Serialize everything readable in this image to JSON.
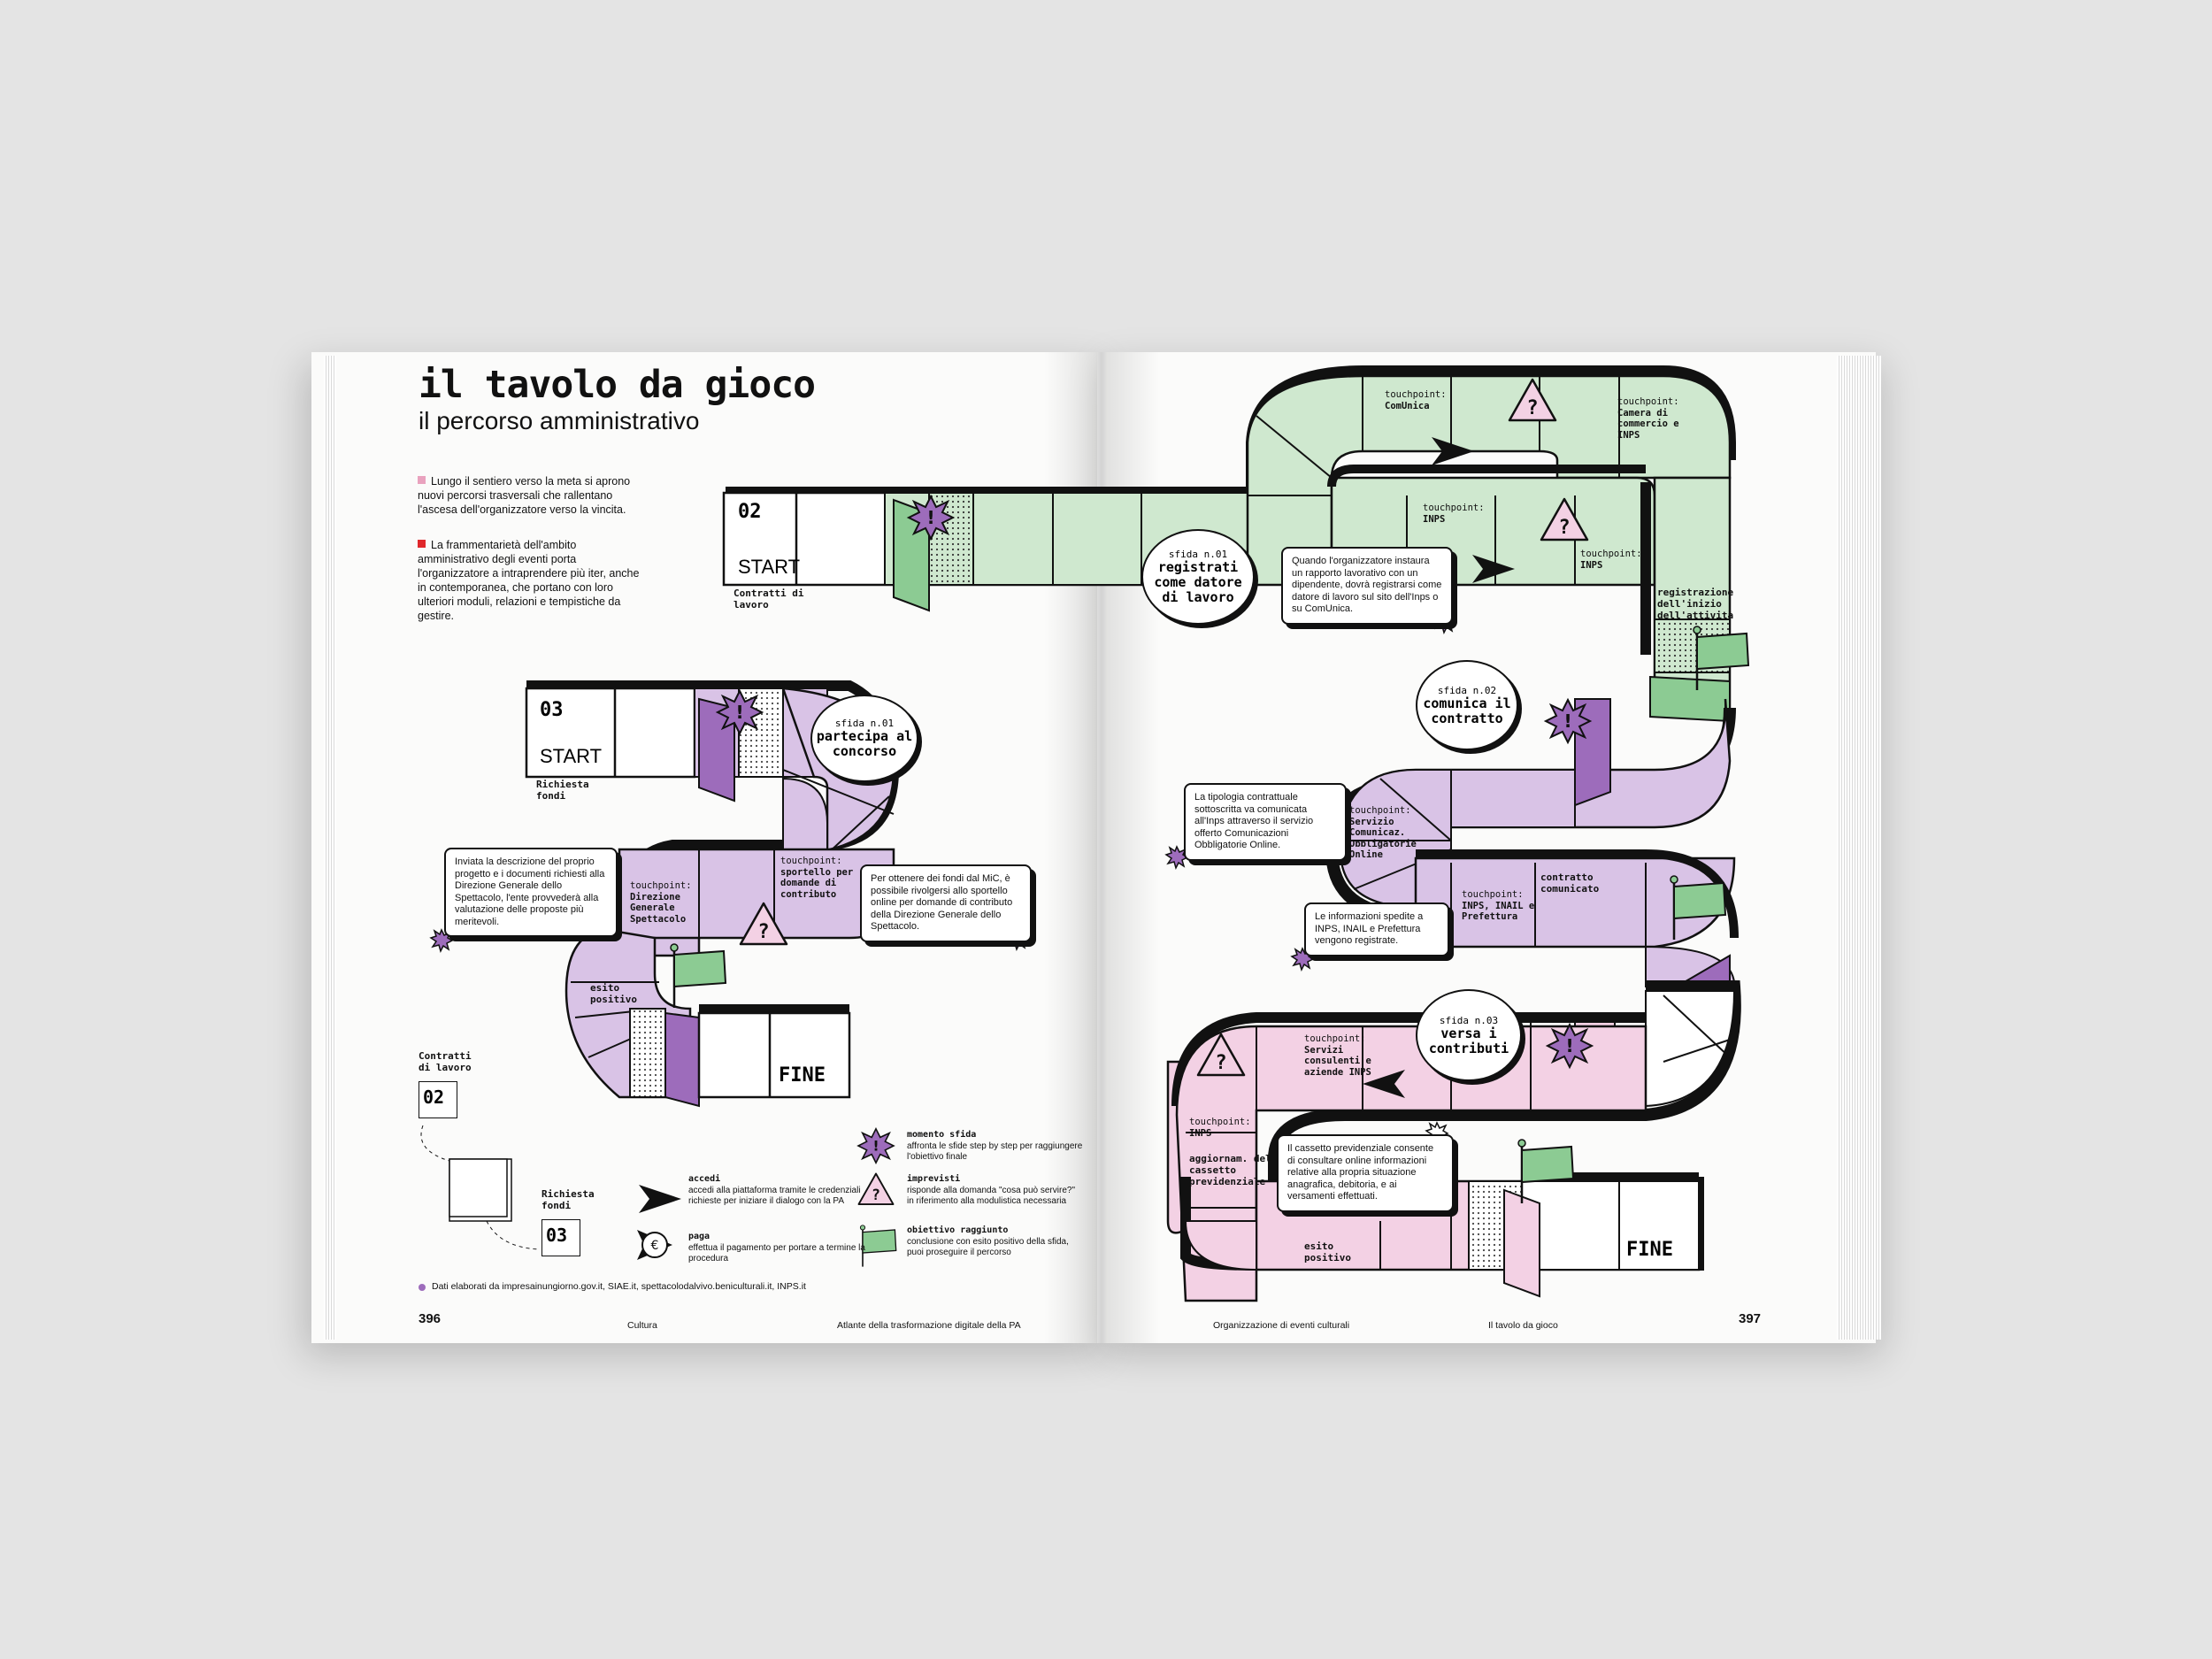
{
  "title": "il tavolo da gioco",
  "subtitle": "il percorso amministrativo",
  "intro": [
    {
      "text": "Lungo il sentiero verso la meta si aprono nuovi percorsi trasversali che rallentano l'ascesa dell'organizzatore verso la vincita.",
      "color": "#e9a2be"
    },
    {
      "text": "La frammentarietà dell'ambito amministrativo degli eventi porta l'organizzatore a intraprendere più iter, anche in contemporanea, che portano con loro ulteriori moduli, relazioni e tempistiche da gestire.",
      "color": "#e0272b"
    }
  ],
  "colors": {
    "green": "#cfe8cf",
    "green_dark": "#8ccb93",
    "purple": "#d9c3e6",
    "purple_dark": "#9d6cbb",
    "pink": "#f3d1e4",
    "pink_dark": "#e9a9ce",
    "ink": "#111111"
  },
  "path02": {
    "number": "02",
    "start": "START",
    "label": "Contratti di lavoro",
    "challenge": {
      "k": "sfida n.01",
      "v": "registrati come datore di lavoro"
    },
    "bubble": "Quando l'organizzatore instaura un rapporto lavorativo con un dipendente, dovrà registrarsi come datore di lavoro sul sito dell'Inps o su ComUnica.",
    "tp1": {
      "k": "touchpoint:",
      "v": "ComUnica"
    },
    "tp2": {
      "k": "touchpoint:",
      "v": "Camera di commercio e INPS"
    },
    "tp3": {
      "k": "touchpoint:",
      "v": "INPS"
    },
    "tp4": {
      "k": "touchpoint:",
      "v": "INPS"
    },
    "step": "registrazione dell'inizio dell'attività"
  },
  "path02b": {
    "challenge": {
      "k": "sfida n.02",
      "v": "comunica il contratto"
    },
    "bubble1": "La tipologia contrattuale sottoscritta va comunicata all'Inps attraverso il servizio offerto Comunicazioni Obbligatorie Online.",
    "tp1": {
      "k": "touchpoint:",
      "v": "Servizio Comunicaz. Obbligatorie Online"
    },
    "tp2": {
      "k": "touchpoint:",
      "v": "INPS, INAIL e Prefettura"
    },
    "step": "contratto comunicato",
    "bubble2": "Le informazioni spedite a INPS, INAIL e Prefettura vengono registrate."
  },
  "path02c": {
    "challenge": {
      "k": "sfida n.03",
      "v": "versa i contributi"
    },
    "tp1": {
      "k": "touchpoint:",
      "v": "Servizi consulenti e aziende INPS"
    },
    "tp2": {
      "k": "touchpoint:",
      "v": "INPS"
    },
    "step1": "aggiornam. del cassetto previdenziale",
    "bubble": "Il cassetto previdenziale consente di consultare online informazioni relative alla propria situazione anagrafica, debitoria, e ai versamenti effettuati.",
    "step2": "esito positivo",
    "end": "FINE"
  },
  "path03": {
    "number": "03",
    "start": "START",
    "label": "Richiesta fondi",
    "challenge": {
      "k": "sfida n.01",
      "v": "partecipa al concorso"
    },
    "bubble1": "Inviata la descrizione del proprio progetto e i documenti richiesti alla Direzione Generale dello Spettacolo, l'ente provvederà alla valutazione delle proposte più meritevoli.",
    "tp1": {
      "k": "touchpoint:",
      "v": "Direzione Generale Spettacolo"
    },
    "tp2": {
      "k": "touchpoint:",
      "v": "sportello per domande di contributo"
    },
    "bubble2": "Per ottenere dei fondi dal MiC, è possibile rivolgersi allo sportello online per domande di contributo della Direzione Generale dello Spettacolo.",
    "step": "esito positivo",
    "end": "FINE"
  },
  "mini_map": {
    "a_label": "Contratti di lavoro",
    "a_num": "02",
    "b_label": "Richiesta fondi",
    "b_num": "03"
  },
  "legend": [
    {
      "icon": "arrow-icon",
      "title": "accedi",
      "text": "accedi alla piattaforma tramite le credenziali richieste per iniziare il dialogo con la PA"
    },
    {
      "icon": "euro-icon",
      "title": "paga",
      "text": "effettua il pagamento per portare a termine la procedura"
    },
    {
      "icon": "burst-icon",
      "title": "momento sfida",
      "text": "affronta le sfide step by step per raggiungere l'obiettivo finale"
    },
    {
      "icon": "warning-icon",
      "title": "imprevisti",
      "text": "risponde alla domanda \"cosa può servire?\" in riferimento alla modulistica necessaria"
    },
    {
      "icon": "flag-icon",
      "title": "obiettivo raggiunto",
      "text": "conclusione con esito positivo della sfida, puoi proseguire il percorso"
    }
  ],
  "source": "Dati elaborati da impresainungiorno.gov.it, SIAE.it, spettacolodalvivo.beniculturali.it, INPS.it",
  "footer_left": {
    "page": "396",
    "section": "Cultura",
    "book": "Atlante della trasformazione digitale della PA"
  },
  "footer_right": {
    "topic": "Organizzazione di eventi culturali",
    "chapter": "Il tavolo da gioco",
    "page": "397"
  }
}
